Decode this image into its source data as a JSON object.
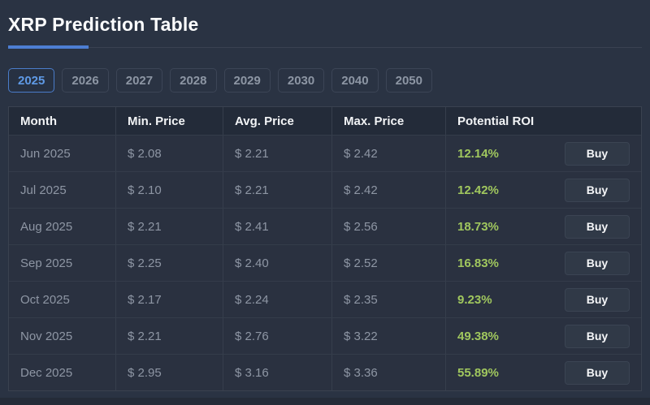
{
  "page": {
    "title": "XRP Prediction Table"
  },
  "tabs": [
    {
      "label": "2025",
      "active": true
    },
    {
      "label": "2026",
      "active": false
    },
    {
      "label": "2027",
      "active": false
    },
    {
      "label": "2028",
      "active": false
    },
    {
      "label": "2029",
      "active": false
    },
    {
      "label": "2030",
      "active": false
    },
    {
      "label": "2040",
      "active": false
    },
    {
      "label": "2050",
      "active": false
    }
  ],
  "table": {
    "headers": [
      "Month",
      "Min. Price",
      "Avg. Price",
      "Max. Price",
      "Potential ROI"
    ],
    "buy_label": "Buy",
    "rows": [
      {
        "month": "Jun 2025",
        "min": "$ 2.08",
        "avg": "$ 2.21",
        "max": "$ 2.42",
        "roi": "12.14%"
      },
      {
        "month": "Jul 2025",
        "min": "$ 2.10",
        "avg": "$ 2.21",
        "max": "$ 2.42",
        "roi": "12.42%"
      },
      {
        "month": "Aug 2025",
        "min": "$ 2.21",
        "avg": "$ 2.41",
        "max": "$ 2.56",
        "roi": "18.73%"
      },
      {
        "month": "Sep 2025",
        "min": "$ 2.25",
        "avg": "$ 2.40",
        "max": "$ 2.52",
        "roi": "16.83%"
      },
      {
        "month": "Oct 2025",
        "min": "$ 2.17",
        "avg": "$ 2.24",
        "max": "$ 2.35",
        "roi": "9.23%"
      },
      {
        "month": "Nov 2025",
        "min": "$ 2.21",
        "avg": "$ 2.76",
        "max": "$ 3.22",
        "roi": "49.38%"
      },
      {
        "month": "Dec 2025",
        "min": "$ 2.95",
        "avg": "$ 3.16",
        "max": "$ 3.36",
        "roi": "55.89%"
      }
    ]
  },
  "colors": {
    "page_background": "#2a3343",
    "table_header_background": "#232b39",
    "row_background": "#2a3140",
    "border": "#3a4250",
    "accent_blue": "#4d7ed3",
    "active_tab_blue": "#5f9ae6",
    "roi_green": "#a0c75e",
    "text_primary": "#fbfcfd",
    "text_muted": "#8e96a4"
  }
}
